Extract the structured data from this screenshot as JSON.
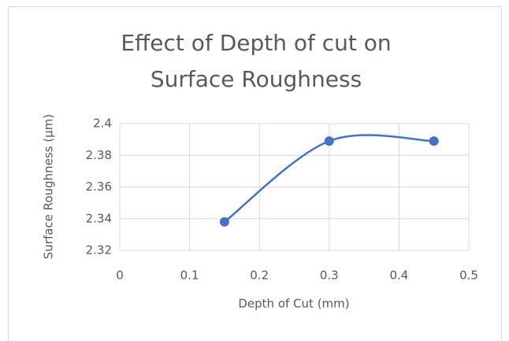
{
  "chart_data": {
    "type": "scatter",
    "title": "Effect of Depth of cut on Surface Roughness",
    "x_label": "Depth of Cut (mm)",
    "y_label": "Surface Roughness (μm)",
    "series": [
      {
        "name": "Surface Roughness",
        "color": "#4472c4",
        "x": [
          0.15,
          0.3,
          0.45
        ],
        "values": [
          2.338,
          2.389,
          2.389
        ]
      }
    ],
    "xlim": [
      0,
      0.5
    ],
    "xticks": [
      0,
      0.1,
      0.2,
      0.3,
      0.4,
      0.5
    ],
    "ylim": [
      2.32,
      2.4
    ],
    "yticks": [
      2.32,
      2.34,
      2.36,
      2.38,
      2.4
    ],
    "grid": true,
    "smooth": true
  }
}
